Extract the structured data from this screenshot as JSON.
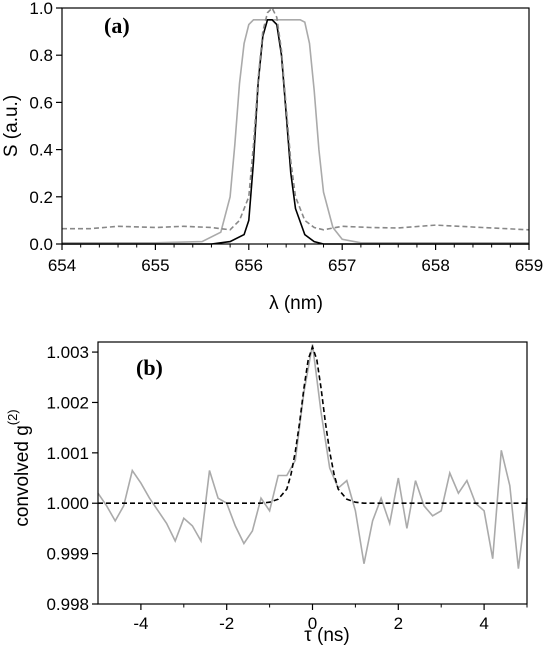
{
  "chart_data": [
    {
      "type": "line",
      "panel_label": "(a)",
      "xlabel": "λ (nm)",
      "ylabel": "S (a.u.)",
      "xlim": [
        654,
        659
      ],
      "ylim": [
        0,
        1.0
      ],
      "xticks": [
        "654",
        "655",
        "656",
        "657",
        "658",
        "659"
      ],
      "yticks": [
        "0.0",
        "0.2",
        "0.4",
        "0.6",
        "0.8",
        "1.0"
      ],
      "grid": false,
      "series": [
        {
          "style": "solid",
          "color": "#aaaaaa",
          "x": [
            654.0,
            655.0,
            655.5,
            655.7,
            655.8,
            655.85,
            655.9,
            655.95,
            656.0,
            656.05,
            656.1,
            656.15,
            656.2,
            656.3,
            656.4,
            656.5,
            656.55,
            656.6,
            656.65,
            656.7,
            656.75,
            656.8,
            656.9,
            657.0,
            657.2,
            657.5,
            659.0
          ],
          "y": [
            0.005,
            0.005,
            0.01,
            0.05,
            0.2,
            0.42,
            0.68,
            0.85,
            0.93,
            0.95,
            0.95,
            0.95,
            0.95,
            0.95,
            0.95,
            0.95,
            0.95,
            0.94,
            0.85,
            0.65,
            0.4,
            0.22,
            0.07,
            0.02,
            0.005,
            0.005,
            0.005
          ]
        },
        {
          "style": "solid",
          "color": "#000000",
          "x": [
            654.0,
            655.6,
            655.8,
            655.95,
            656.0,
            656.05,
            656.1,
            656.15,
            656.2,
            656.25,
            656.3,
            656.35,
            656.4,
            656.45,
            656.5,
            656.6,
            656.7,
            656.8,
            657.0,
            659.0
          ],
          "y": [
            0.0,
            0.0,
            0.01,
            0.04,
            0.1,
            0.35,
            0.68,
            0.88,
            0.95,
            0.95,
            0.93,
            0.8,
            0.55,
            0.3,
            0.15,
            0.04,
            0.01,
            0.0,
            0.0,
            0.0
          ]
        },
        {
          "style": "dashed",
          "color": "#888888",
          "x": [
            654.0,
            654.3,
            654.6,
            655.0,
            655.3,
            655.6,
            655.8,
            655.9,
            656.0,
            656.05,
            656.1,
            656.15,
            656.2,
            656.25,
            656.3,
            656.35,
            656.4,
            656.45,
            656.5,
            656.6,
            656.7,
            656.8,
            657.0,
            657.3,
            657.6,
            658.0,
            658.5,
            659.0
          ],
          "y": [
            0.065,
            0.065,
            0.075,
            0.07,
            0.075,
            0.07,
            0.06,
            0.1,
            0.2,
            0.42,
            0.7,
            0.9,
            0.98,
            1.0,
            0.96,
            0.82,
            0.58,
            0.35,
            0.2,
            0.1,
            0.07,
            0.06,
            0.075,
            0.07,
            0.068,
            0.08,
            0.07,
            0.06
          ]
        }
      ]
    },
    {
      "type": "line",
      "panel_label": "(b)",
      "xlabel": "τ (ns)",
      "ylabel": "convolved g",
      "ylabel_superscript": "(2)",
      "xlim": [
        -5,
        5
      ],
      "ylim": [
        0.998,
        1.0032
      ],
      "xticks": [
        "-4",
        "-2",
        "0",
        "2",
        "4"
      ],
      "xtick_values": [
        -4,
        -2,
        0,
        2,
        4
      ],
      "yticks": [
        "0.998",
        "0.999",
        "1.000",
        "1.001",
        "1.002",
        "1.003"
      ],
      "ytick_values": [
        0.998,
        0.999,
        1.0,
        1.001,
        1.002,
        1.003
      ],
      "grid": false,
      "series": [
        {
          "style": "solid",
          "color": "#aaaaaa",
          "x": [
            -5.0,
            -4.8,
            -4.6,
            -4.4,
            -4.2,
            -4.0,
            -3.8,
            -3.6,
            -3.4,
            -3.2,
            -3.0,
            -2.8,
            -2.6,
            -2.4,
            -2.2,
            -2.0,
            -1.8,
            -1.6,
            -1.4,
            -1.2,
            -1.0,
            -0.8,
            -0.6,
            -0.4,
            -0.2,
            0.0,
            0.2,
            0.4,
            0.6,
            0.8,
            1.0,
            1.2,
            1.4,
            1.6,
            1.8,
            2.0,
            2.2,
            2.4,
            2.6,
            2.8,
            3.0,
            3.2,
            3.4,
            3.6,
            3.8,
            4.0,
            4.2,
            4.4,
            4.6,
            4.8,
            5.0
          ],
          "y": [
            1.0002,
            0.99995,
            0.99965,
            0.99995,
            1.00065,
            1.0004,
            1.0001,
            0.99985,
            0.9996,
            0.99925,
            0.9997,
            0.99955,
            0.99925,
            1.00065,
            1.0001,
            1.0,
            0.99955,
            0.9992,
            0.99945,
            1.0001,
            0.99985,
            1.00055,
            1.00055,
            1.00085,
            1.0022,
            1.00315,
            1.0018,
            1.0007,
            1.0003,
            1.00045,
            0.99985,
            0.9988,
            0.99965,
            1.0001,
            0.9996,
            1.0005,
            0.9995,
            1.00045,
            0.99995,
            0.99975,
            0.99985,
            1.0006,
            1.0002,
            1.00045,
            1.0,
            0.99985,
            0.9989,
            1.00105,
            1.00035,
            0.9987,
            1.0001
          ]
        },
        {
          "style": "dashed",
          "color": "#000000",
          "x": [
            -5.0,
            -1.2,
            -1.0,
            -0.8,
            -0.6,
            -0.5,
            -0.4,
            -0.3,
            -0.2,
            -0.1,
            0.0,
            0.1,
            0.2,
            0.3,
            0.4,
            0.5,
            0.6,
            0.8,
            1.0,
            1.2,
            5.0
          ],
          "y": [
            1.0,
            1.0,
            1.00002,
            1.00008,
            1.00028,
            1.00058,
            1.00102,
            1.0016,
            1.00228,
            1.00285,
            1.0031,
            1.00285,
            1.00228,
            1.0016,
            1.00102,
            1.00058,
            1.00028,
            1.00008,
            1.00002,
            1.0,
            1.0
          ]
        }
      ]
    }
  ]
}
